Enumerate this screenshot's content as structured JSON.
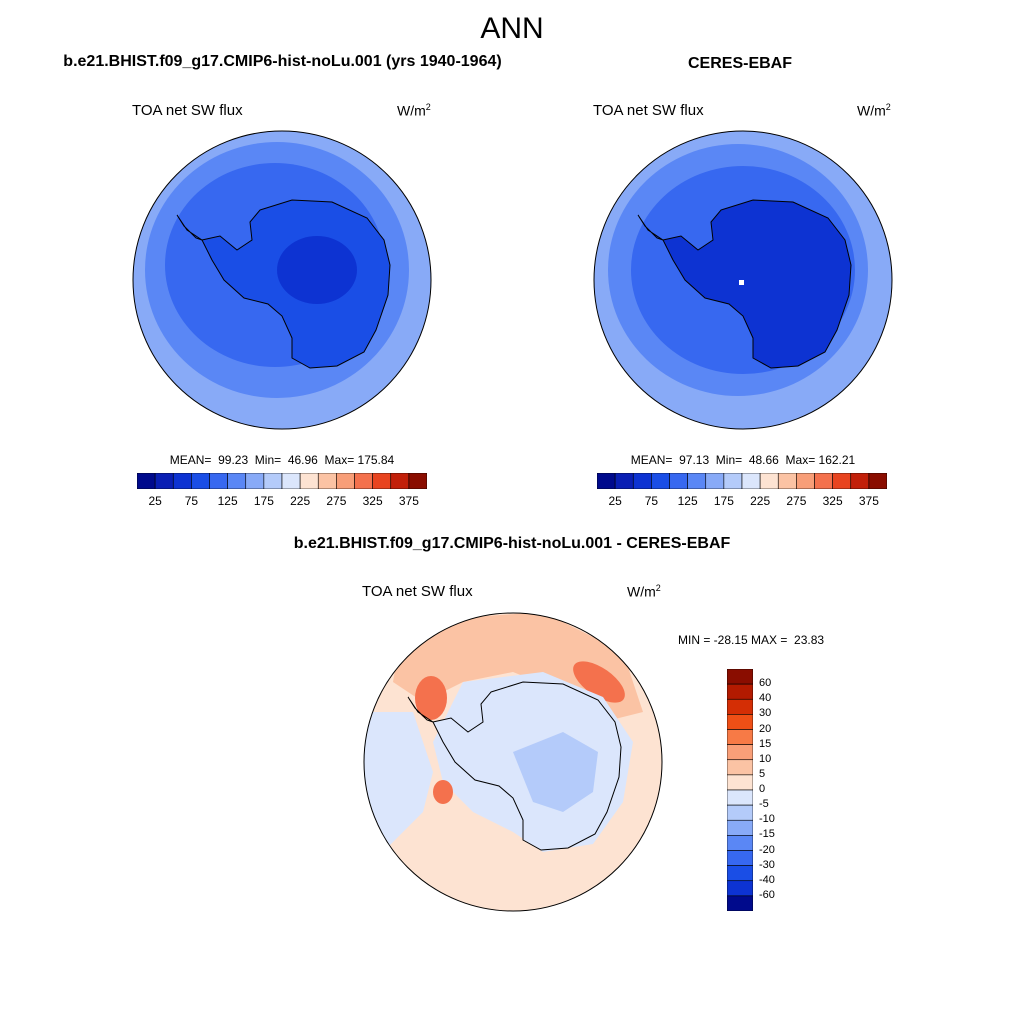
{
  "figure": {
    "title": "ANN"
  },
  "panels": [
    {
      "title": "b.e21.BHIST.f09_g17.CMIP6-hist-noLu.001 (yrs 1940-1964)",
      "variable": "TOA net SW flux",
      "unit": "W/m",
      "unit_sup": "2",
      "stats": "MEAN=  99.23  Min=  46.96  Max= 175.84"
    },
    {
      "title": "CERES-EBAF",
      "variable": "TOA net SW flux",
      "unit": "W/m",
      "unit_sup": "2",
      "stats": "MEAN=  97.13  Min=  48.66  Max= 162.21"
    },
    {
      "title": "b.e21.BHIST.f09_g17.CMIP6-hist-noLu.001 - CERES-EBAF",
      "variable": "TOA net SW flux",
      "unit": "W/m",
      "unit_sup": "2",
      "stats": "MIN = -28.15 MAX =  23.83"
    }
  ],
  "colorbar_abs": {
    "ticks": [
      "25",
      "75",
      "125",
      "175",
      "225",
      "275",
      "325",
      "375"
    ],
    "colors": [
      "#000a8c",
      "#0a1fb4",
      "#0d33d2",
      "#1a4ee6",
      "#3768f0",
      "#5a87f5",
      "#88aaf7",
      "#b4cbfa",
      "#dbe6fc",
      "#fde3d2",
      "#fbc3a4",
      "#f89e78",
      "#f4714d",
      "#e8441f",
      "#c2200a",
      "#8a0d00"
    ]
  },
  "colorbar_diff": {
    "labels": [
      "60",
      "40",
      "30",
      "20",
      "15",
      "10",
      "5",
      "0",
      "-5",
      "-10",
      "-15",
      "-20",
      "-30",
      "-40",
      "-60"
    ],
    "colors": [
      "#8a0d00",
      "#b31a00",
      "#d42e05",
      "#ef4f16",
      "#f77a46",
      "#f99f78",
      "#fbc3a4",
      "#fde3d2",
      "#dbe6fc",
      "#b4cbfa",
      "#88aaf7",
      "#5a87f5",
      "#3768f0",
      "#1a4ee6",
      "#0d33d2",
      "#000a8c"
    ]
  },
  "map_colors": {
    "ocean_far": "#88aaf7",
    "ocean_mid": "#5a87f5",
    "ocean_near": "#3768f0",
    "land": "#1a4ee6",
    "land_center": "#0d33d2",
    "diff_base": "#fde3d2",
    "diff_warm": "#fbc3a4",
    "diff_hot": "#f4714d",
    "diff_cool": "#dbe6fc",
    "diff_cold": "#b4cbfa",
    "coast": "#000000"
  }
}
